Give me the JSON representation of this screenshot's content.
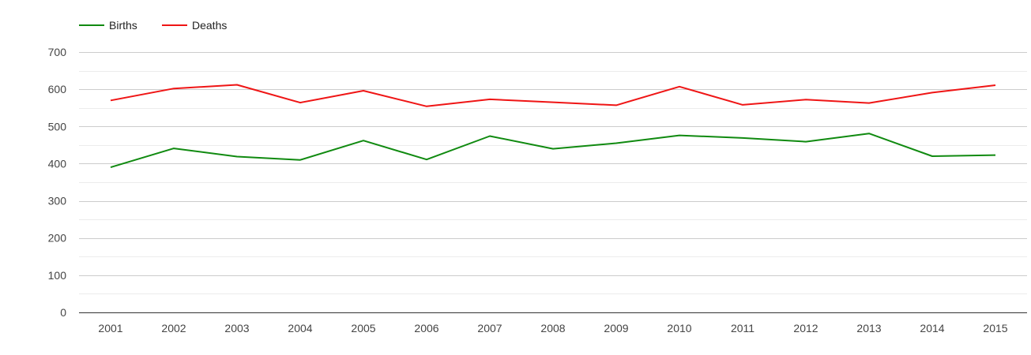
{
  "chart_data": {
    "type": "line",
    "x": [
      "2001",
      "2002",
      "2003",
      "2004",
      "2005",
      "2006",
      "2007",
      "2008",
      "2009",
      "2010",
      "2011",
      "2012",
      "2013",
      "2014",
      "2015"
    ],
    "series": [
      {
        "name": "Births",
        "color": "#108a10",
        "values": [
          390,
          441,
          419,
          410,
          462,
          411,
          474,
          440,
          455,
          476,
          469,
          459,
          481,
          420,
          423
        ]
      },
      {
        "name": "Deaths",
        "color": "#ef1515",
        "values": [
          570,
          602,
          612,
          564,
          596,
          554,
          573,
          565,
          557,
          607,
          558,
          572,
          563,
          591,
          611
        ]
      }
    ],
    "ylim": [
      0,
      700
    ],
    "yticks": [
      0,
      100,
      200,
      300,
      400,
      500,
      600,
      700
    ],
    "grid": true,
    "minor_grid": true,
    "legend_position": "top-left",
    "title": "",
    "xlabel": "",
    "ylabel": ""
  }
}
